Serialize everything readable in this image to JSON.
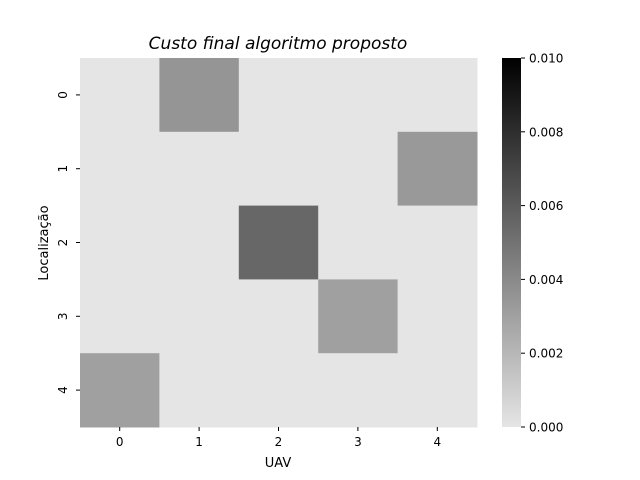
{
  "chart_data": {
    "type": "heatmap",
    "title": "Custo final algoritmo proposto",
    "xlabel": "UAV",
    "ylabel": "Localização",
    "x_categories": [
      "0",
      "1",
      "2",
      "3",
      "4"
    ],
    "y_categories": [
      "0",
      "1",
      "2",
      "3",
      "4"
    ],
    "values": [
      [
        0.0,
        0.0035,
        0.0,
        0.0,
        0.0
      ],
      [
        0.0,
        0.0,
        0.0,
        0.0,
        0.0033
      ],
      [
        0.0,
        0.0,
        0.0055,
        0.0,
        0.0
      ],
      [
        0.0,
        0.0,
        0.0,
        0.003,
        0.0
      ],
      [
        0.003,
        0.0,
        0.0,
        0.0,
        0.0
      ]
    ],
    "colorbar": {
      "vmin": 0.0,
      "vmax": 0.01,
      "ticks": [
        "0.000",
        "0.002",
        "0.004",
        "0.006",
        "0.008",
        "0.010"
      ],
      "color_low": "#e5e5e5",
      "color_high": "#000000"
    }
  }
}
